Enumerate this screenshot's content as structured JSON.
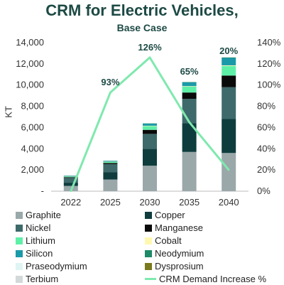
{
  "chart_data": {
    "type": "bar",
    "title": "CRM for Electric Vehicles,",
    "subtitle": "Base Case",
    "ylabel": "KT",
    "categories": [
      "2022",
      "2025",
      "2030",
      "2035",
      "2040"
    ],
    "ylim": [
      0,
      14000
    ],
    "y_ticks": [
      "-",
      "2,000",
      "4,000",
      "6,000",
      "8,000",
      "10,000",
      "12,000",
      "14,000"
    ],
    "y2lim": [
      0,
      140
    ],
    "y2_ticks": [
      "0%",
      "20%",
      "40%",
      "60%",
      "80%",
      "100%",
      "120%",
      "140%"
    ],
    "stacked": true,
    "series": [
      {
        "name": "Graphite",
        "color": "#9aa8aa",
        "values": [
          500,
          1100,
          2400,
          3700,
          3600
        ]
      },
      {
        "name": "Copper",
        "color": "#0f3d3e",
        "values": [
          300,
          700,
          1600,
          2700,
          3200
        ]
      },
      {
        "name": "Nickel",
        "color": "#3e6a6b",
        "values": [
          450,
          750,
          1400,
          2300,
          3000
        ]
      },
      {
        "name": "Manganese",
        "color": "#0a0a0a",
        "values": [
          70,
          110,
          380,
          600,
          1100
        ]
      },
      {
        "name": "Lithium",
        "color": "#5ff0a8",
        "values": [
          50,
          100,
          350,
          550,
          900
        ]
      },
      {
        "name": "Cobalt",
        "color": "#fff8b0",
        "values": [
          20,
          20,
          40,
          50,
          60
        ]
      },
      {
        "name": "Silicon",
        "color": "#1a9aa8",
        "values": [
          60,
          80,
          200,
          350,
          700
        ]
      },
      {
        "name": "Neodymium",
        "color": "#1e8a68",
        "values": [
          10,
          10,
          20,
          30,
          40
        ]
      },
      {
        "name": "Praseodymium",
        "color": "#dff5f3",
        "values": [
          5,
          5,
          10,
          10,
          15
        ]
      },
      {
        "name": "Dysprosium",
        "color": "#7a7a1e",
        "values": [
          3,
          3,
          5,
          5,
          8
        ]
      },
      {
        "name": "Terbium",
        "color": "#d3d8d8",
        "values": [
          2,
          2,
          3,
          3,
          5
        ]
      }
    ],
    "line_series": {
      "name": "CRM Demand Increase %",
      "color": "#7fe9ae",
      "axis": "right",
      "values": [
        0,
        93,
        126,
        65,
        20
      ]
    },
    "annotations": [
      "",
      "93%",
      "126%",
      "65%",
      "20%"
    ],
    "grid": false,
    "legend_position": "bottom"
  }
}
